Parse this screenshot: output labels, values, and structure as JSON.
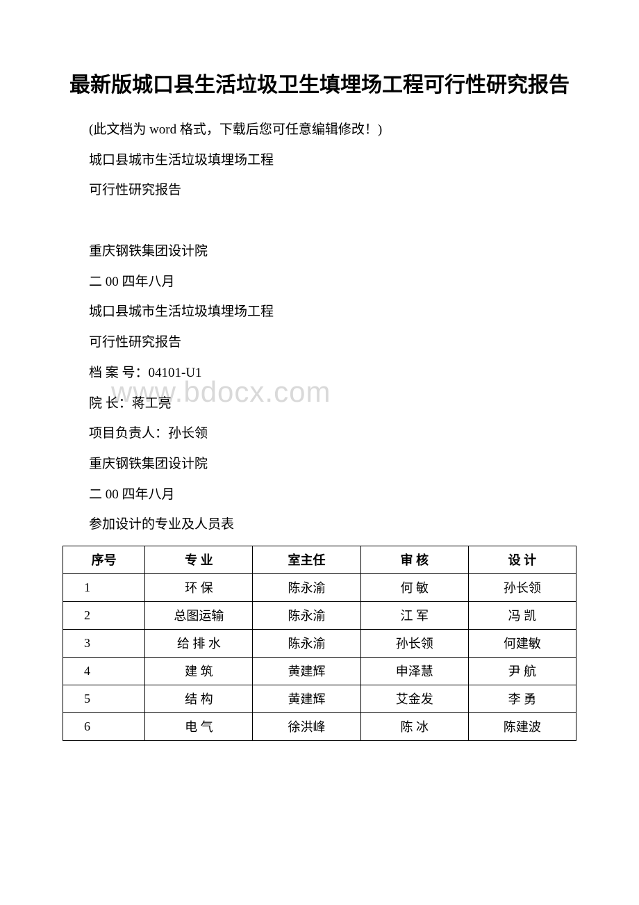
{
  "title": "最新版城口县生活垃圾卫生填埋场工程可行性研究报告",
  "lines": [
    "(此文档为 word 格式，下载后您可任意编辑修改！)",
    "城口县城市生活垃圾填埋场工程",
    "可行性研究报告",
    "",
    "重庆钢铁集团设计院",
    "二 00 四年八月",
    "城口县城市生活垃圾填埋场工程",
    "可行性研究报告",
    "档 案 号：04101-U1",
    "院 长：蒋工亮",
    "项目负责人：孙长领",
    "重庆钢铁集团设计院",
    "二 00 四年八月",
    "参加设计的专业及人员表"
  ],
  "watermark": "www.bdocx.com",
  "table": {
    "headers": [
      "序号",
      "专  业",
      "室主任",
      "审  核",
      "设  计"
    ],
    "rows": [
      [
        "1",
        "环  保",
        "陈永渝",
        "何  敏",
        "孙长领"
      ],
      [
        "2",
        "总图运输",
        "陈永渝",
        "江  军",
        "冯  凯"
      ],
      [
        "3",
        "给 排 水",
        "陈永渝",
        "孙长领",
        "何建敏"
      ],
      [
        "4",
        "建  筑",
        "黄建辉",
        "申泽慧",
        "尹  航"
      ],
      [
        "5",
        "结  构",
        "黄建辉",
        "艾金发",
        "李  勇"
      ],
      [
        "6",
        "电  气",
        "徐洪峰",
        "陈  冰",
        "陈建波"
      ]
    ],
    "col_widths": [
      "16%",
      "21%",
      "21%",
      "21%",
      "21%"
    ]
  },
  "colors": {
    "background": "#ffffff",
    "text": "#000000",
    "watermark": "#d9d9d9",
    "border": "#000000"
  },
  "fonts": {
    "title_size": 30,
    "body_size": 19,
    "table_size": 18,
    "watermark_size": 42
  }
}
